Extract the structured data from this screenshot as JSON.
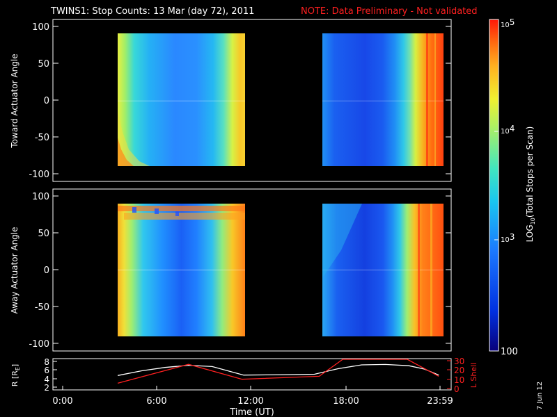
{
  "title": {
    "main": "TWINS1: Stop Counts: 13 Mar (day  72), 2011",
    "note": "NOTE: Data Preliminary - Not validated",
    "note_color": "#ff2020"
  },
  "side_date": "7 Jun 12",
  "chart_data": [
    {
      "type": "heatmap",
      "panel": "top",
      "ylabel": "Toward Actuator Angle",
      "ylim": [
        -110,
        110
      ],
      "yticks": [
        "100",
        "50",
        "0",
        "-50",
        "-100"
      ],
      "data_blocks_hours": [
        [
          3.5,
          11.8
        ],
        [
          16.2,
          23.8
        ]
      ],
      "data_angle_range": [
        -90,
        90
      ]
    },
    {
      "type": "heatmap",
      "panel": "middle",
      "ylabel": "Away Actuator Angle",
      "ylim": [
        -110,
        110
      ],
      "yticks": [
        "100",
        "50",
        "0",
        "-50",
        "-100"
      ],
      "data_blocks_hours": [
        [
          3.5,
          11.8
        ],
        [
          16.2,
          23.8
        ]
      ],
      "data_angle_range": [
        -90,
        90
      ]
    },
    {
      "type": "line",
      "panel": "bottom",
      "xlabel": "Time (UT)",
      "xticks": [
        "0:00",
        "6:00",
        "12:00",
        "18:00",
        "23:59"
      ],
      "ylabel_left": "R [R",
      "ylabel_left_sub": "E",
      "ylabel_left_close": "]",
      "ylim_left": [
        1.5,
        8.5
      ],
      "yticks_left": [
        "8",
        "6",
        "4",
        "2"
      ],
      "ylabel_right": "L Shell",
      "ylim_right": [
        0,
        30
      ],
      "yticks_right": [
        "30",
        "20",
        "10",
        "0"
      ],
      "series": [
        {
          "color": "#ffffff",
          "axis": "left",
          "x": [
            3.5,
            5,
            6.5,
            8,
            9.5,
            11.5,
            14,
            16,
            17.5,
            19,
            20.5,
            22,
            23,
            23.9
          ],
          "y": [
            4.7,
            5.8,
            6.6,
            7.1,
            6.8,
            4.8,
            4.9,
            5.0,
            6.3,
            7.2,
            7.3,
            7.0,
            6.2,
            4.8
          ]
        },
        {
          "color": "#ff2020",
          "axis": "right",
          "x": [
            3.5,
            8,
            11.4,
            16.3,
            17.8,
            21.9,
            23.9
          ],
          "y": [
            6,
            25,
            10,
            13,
            30,
            30,
            13
          ]
        }
      ]
    }
  ],
  "colorbar": {
    "label": "LOG10(Total Stops per Scan)",
    "label_main": "LOG",
    "label_sub": "10",
    "label_rest": "(Total Stops per Scan)",
    "range": [
      100,
      100000
    ],
    "ticks": [
      {
        "base": "10",
        "exp": "5"
      },
      {
        "base": "10",
        "exp": "4"
      },
      {
        "base": "10",
        "exp": "3"
      }
    ],
    "bottom_label": "100"
  },
  "colors": [
    "#08007a",
    "#0030e0",
    "#1b78ff",
    "#19c6f0",
    "#41e6bf",
    "#b0f060",
    "#f0f030",
    "#ffb020",
    "#ff6a10",
    "#ff1808"
  ]
}
